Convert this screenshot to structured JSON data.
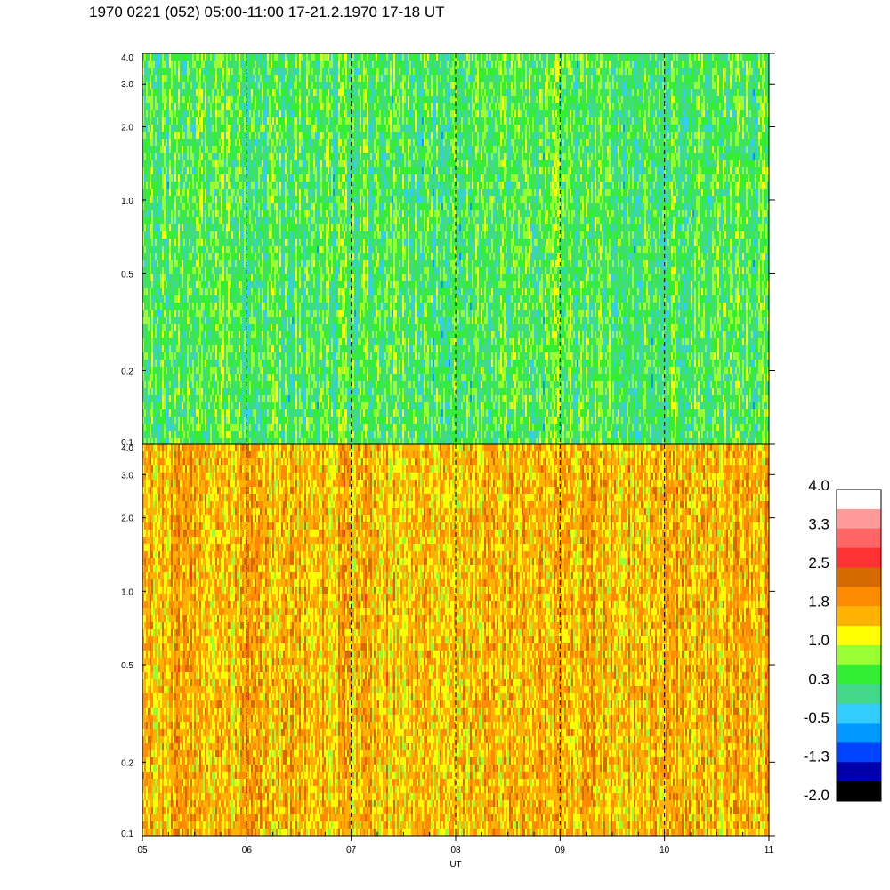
{
  "title": "1970 0221 (052) 05:00-11:00 17-21.2.1970  17-18 UT",
  "chart_data": {
    "type": "heatmap",
    "x_axis": {
      "label": "UT",
      "ticks": [
        "05",
        "06",
        "07",
        "08",
        "09",
        "10",
        "11"
      ],
      "range": [
        5,
        11
      ],
      "dashed_gridlines_at": [
        6,
        7,
        8,
        9,
        10
      ]
    },
    "y_axis": {
      "scale": "log",
      "range": [
        0.1,
        4.0
      ],
      "ticks": [
        {
          "value": 0.1,
          "label": "0.1"
        },
        {
          "value": 0.2,
          "label": "0.2"
        },
        {
          "value": 0.5,
          "label": "0.5"
        },
        {
          "value": 1.0,
          "label": "1.0"
        },
        {
          "value": 2.0,
          "label": "2.0"
        },
        {
          "value": 3.0,
          "label": "3.0"
        },
        {
          "value": 4.0,
          "label": "4.0"
        }
      ]
    },
    "panels": [
      {
        "name": "upper",
        "dominant_level": 0.4
      },
      {
        "name": "lower",
        "dominant_level": 1.6
      }
    ],
    "colorbar": {
      "range": [
        -2.0,
        4.0
      ],
      "tick_labels": [
        "4.0",
        "3.3",
        "2.5",
        "1.8",
        "1.0",
        "0.3",
        "-0.5",
        "-1.3",
        "-2.0"
      ],
      "colors_top_to_bottom": [
        "#ffffff",
        "#ff9a9a",
        "#ff6666",
        "#ff3333",
        "#d46a00",
        "#ff8c00",
        "#ffb300",
        "#ffff00",
        "#99ff33",
        "#33ee33",
        "#44d98a",
        "#33ccff",
        "#0099ff",
        "#0044ff",
        "#0000aa",
        "#000000"
      ]
    }
  }
}
